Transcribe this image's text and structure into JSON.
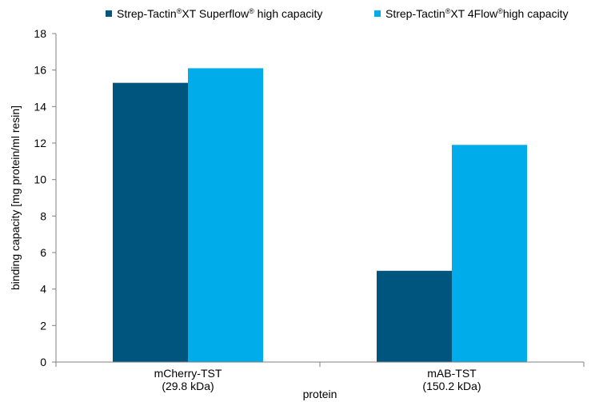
{
  "chart_data": {
    "type": "bar",
    "categories": [
      [
        "mCherry-TST",
        "(29.8 kDa)"
      ],
      [
        "mAB-TST",
        "(150.2 kDa)"
      ]
    ],
    "series": [
      {
        "name": "Strep-Tactin®XT Superflow® high capacity",
        "label_parts": [
          "Strep-Tactin",
          "®",
          "XT Superflow",
          "®",
          " high capacity"
        ],
        "color": "#00557f",
        "values": [
          15.3,
          5.0
        ]
      },
      {
        "name": "Strep-Tactin®XT 4Flow®high capacity",
        "label_parts": [
          "Strep-Tactin",
          "®",
          "XT 4Flow",
          "®",
          "high capacity"
        ],
        "color": "#00adea",
        "values": [
          16.1,
          11.9
        ]
      }
    ],
    "xlabel": "protein",
    "ylabel": "binding capacity [mg protein/ml resin]",
    "ylim": [
      0,
      18
    ],
    "yticks": [
      0,
      2,
      4,
      6,
      8,
      10,
      12,
      14,
      16,
      18
    ],
    "grid": false,
    "legend_position": "top"
  }
}
